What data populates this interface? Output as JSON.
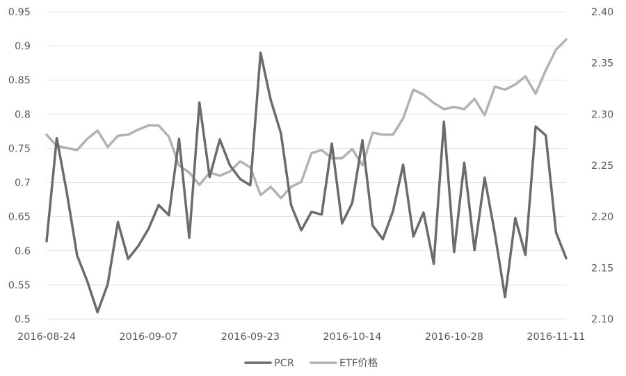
{
  "chart_data": {
    "type": "line",
    "title": "",
    "xlabel": "",
    "ylabel": "",
    "grid": "horizontal",
    "legend_position": "bottom",
    "x_tick_labels": [
      "2016-08-24",
      "2016-09-07",
      "2016-09-23",
      "2016-10-14",
      "2016-10-28",
      "2016-11-11"
    ],
    "x_tick_indices": [
      0,
      10,
      20,
      30,
      40,
      50
    ],
    "y_left": {
      "min": 0.5,
      "max": 0.95,
      "ticks": [
        "0.5",
        "0.55",
        "0.6",
        "0.65",
        "0.7",
        "0.75",
        "0.8",
        "0.85",
        "0.9",
        "0.95"
      ]
    },
    "y_right": {
      "min": 2.1,
      "max": 2.4,
      "ticks": [
        "2.10",
        "2.15",
        "2.20",
        "2.25",
        "2.30",
        "2.35",
        "2.40"
      ]
    },
    "series": [
      {
        "name": "PCR",
        "axis": "left",
        "color": "#6b6b6b",
        "values": [
          0.614,
          0.765,
          0.684,
          0.593,
          0.555,
          0.51,
          0.551,
          0.642,
          0.588,
          0.607,
          0.632,
          0.667,
          0.652,
          0.764,
          0.619,
          0.817,
          0.708,
          0.763,
          0.725,
          0.705,
          0.696,
          0.89,
          0.821,
          0.772,
          0.667,
          0.63,
          0.657,
          0.653,
          0.757,
          0.64,
          0.67,
          0.762,
          0.637,
          0.617,
          0.658,
          0.726,
          0.621,
          0.656,
          0.581,
          0.789,
          0.598,
          0.729,
          0.601,
          0.707,
          0.625,
          0.532,
          0.648,
          0.594,
          0.782,
          0.769,
          0.627,
          0.589
        ]
      },
      {
        "name": "ETF价格",
        "axis": "right",
        "color": "#b2b2b2",
        "values": [
          2.28,
          2.269,
          2.267,
          2.265,
          2.276,
          2.284,
          2.268,
          2.279,
          2.28,
          2.285,
          2.289,
          2.289,
          2.278,
          2.25,
          2.243,
          2.231,
          2.243,
          2.24,
          2.244,
          2.254,
          2.248,
          2.221,
          2.229,
          2.218,
          2.229,
          2.234,
          2.262,
          2.265,
          2.257,
          2.257,
          2.266,
          2.25,
          2.282,
          2.28,
          2.28,
          2.296,
          2.324,
          2.319,
          2.311,
          2.305,
          2.307,
          2.305,
          2.315,
          2.299,
          2.327,
          2.324,
          2.329,
          2.337,
          2.32,
          2.343,
          2.363,
          2.373
        ]
      }
    ]
  }
}
